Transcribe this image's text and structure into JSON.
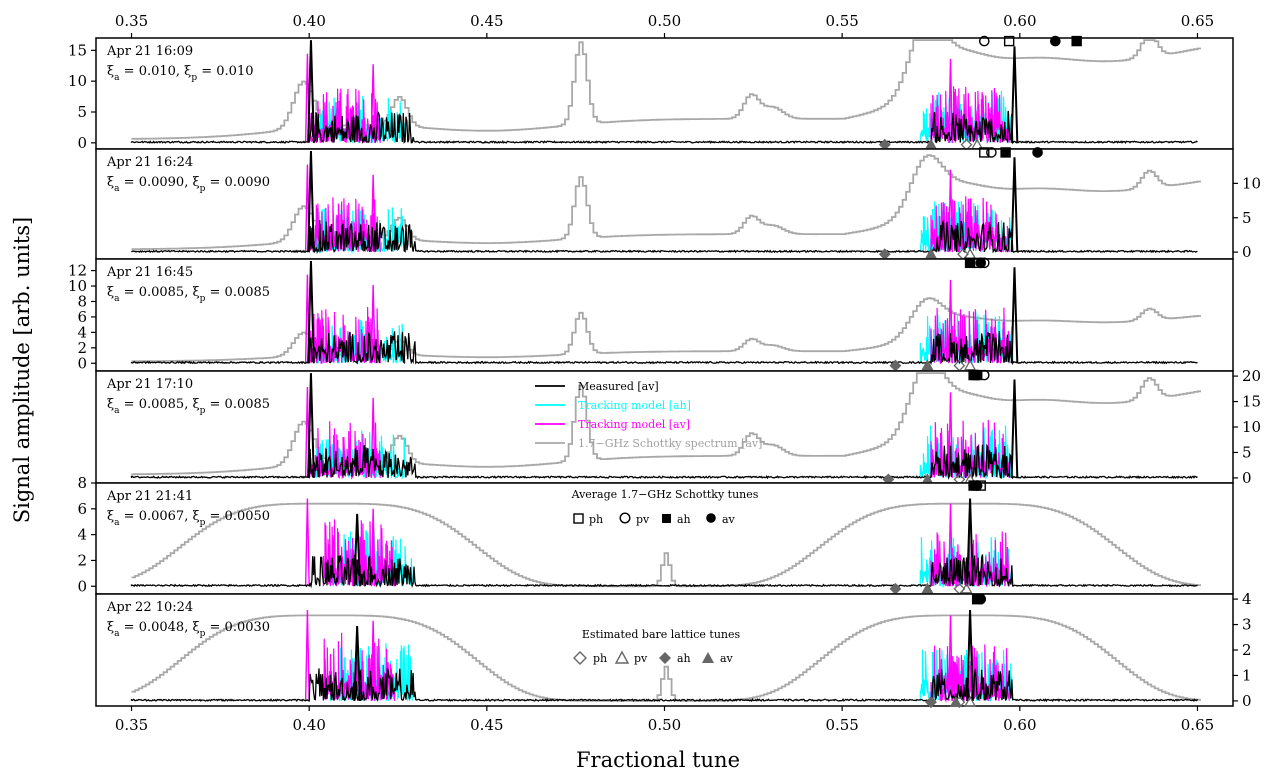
{
  "chart_data": {
    "type": "line",
    "xlabel": "Fractional tune",
    "ylabel": "Signal amplitude [arb. units]",
    "xlim": [
      0.34,
      0.66
    ],
    "x_ticks": [
      "0.35",
      "0.40",
      "0.45",
      "0.50",
      "0.55",
      "0.60",
      "0.65"
    ],
    "grid": false,
    "series_colors": {
      "measured": "#000000",
      "ah": "#00ffff",
      "av": "#ff00ff",
      "schottky": "#a8a8a8",
      "marker_dark": "#666666"
    },
    "legend": {
      "entries": [
        "Measured [av]",
        "Tracking model [ah]",
        "Tracking model [av]",
        "1.7−GHz Schottky spectrum [av]"
      ],
      "schottky_tunes_title": "Average 1.7−GHz Schottky tunes",
      "schottky_tunes_labels": [
        "ph",
        "pv",
        "ah",
        "av"
      ],
      "bare_tunes_title": "Estimated bare lattice tunes",
      "bare_tunes_labels": [
        "ph",
        "pv",
        "ah",
        "av"
      ]
    },
    "panels": [
      {
        "date": "Apr 21 16:09",
        "xi_a": "0.010",
        "xi_p": "0.010",
        "axis_side": "left",
        "ylim": [
          -1,
          17
        ],
        "yticks": [
          {
            "v": 0,
            "l": "0"
          },
          {
            "v": 5,
            "l": "5"
          },
          {
            "v": 10,
            "l": "10"
          },
          {
            "v": 15,
            "l": "15"
          }
        ],
        "schottky_tunes": {
          "ph": [
            0.597,
            16.5
          ],
          "pv": [
            0.59,
            16.5
          ],
          "ah": [
            0.616,
            16.5
          ],
          "av": [
            0.61,
            16.5
          ]
        },
        "bare_tunes": {
          "ph": [
            0.585,
            -0.3
          ],
          "pv": [
            0.588,
            -0.3
          ],
          "ah": [
            0.562,
            -0.3
          ],
          "av": [
            0.575,
            -0.3
          ]
        }
      },
      {
        "date": "Apr 21 16:24",
        "xi_a": "0.0090",
        "xi_p": "0.0090",
        "axis_side": "right",
        "ylim": [
          -1,
          15
        ],
        "yticks": [
          {
            "v": 0,
            "l": "0"
          },
          {
            "v": 5,
            "l": "5"
          },
          {
            "v": 10,
            "l": "10"
          }
        ],
        "schottky_tunes": {
          "ph": [
            0.59,
            14.5
          ],
          "pv": [
            0.592,
            14.5
          ],
          "ah": [
            0.596,
            14.5
          ],
          "av": [
            0.605,
            14.5
          ]
        },
        "bare_tunes": {
          "ph": [
            0.584,
            -0.3
          ],
          "pv": [
            0.586,
            -0.3
          ],
          "ah": [
            0.562,
            -0.3
          ],
          "av": [
            0.575,
            -0.3
          ]
        }
      },
      {
        "date": "Apr 21 16:45",
        "xi_a": "0.0085",
        "xi_p": "0.0085",
        "axis_side": "left",
        "ylim": [
          -1,
          13.5
        ],
        "yticks": [
          {
            "v": 0,
            "l": "0"
          },
          {
            "v": 2,
            "l": "2"
          },
          {
            "v": 4,
            "l": "4"
          },
          {
            "v": 6,
            "l": "6"
          },
          {
            "v": 8,
            "l": "8"
          },
          {
            "v": 10,
            "l": "10"
          },
          {
            "v": 12,
            "l": "12"
          }
        ],
        "schottky_tunes": {
          "ph": [
            0.588,
            13
          ],
          "pv": [
            0.59,
            13
          ],
          "ah": [
            0.586,
            13
          ],
          "av": [
            0.589,
            13
          ]
        },
        "bare_tunes": {
          "ph": [
            0.583,
            -0.3
          ],
          "pv": [
            0.586,
            -0.3
          ],
          "ah": [
            0.565,
            -0.3
          ],
          "av": [
            0.574,
            -0.3
          ]
        }
      },
      {
        "date": "Apr 21 17:10",
        "xi_a": "0.0085",
        "xi_p": "0.0085",
        "axis_side": "right",
        "ylim": [
          -1,
          21
        ],
        "yticks": [
          {
            "v": 0,
            "l": "0"
          },
          {
            "v": 5,
            "l": "5"
          },
          {
            "v": 10,
            "l": "10"
          },
          {
            "v": 15,
            "l": "15"
          },
          {
            "v": 20,
            "l": "20"
          }
        ],
        "schottky_tunes": {
          "ph": [
            0.588,
            20.2
          ],
          "pv": [
            0.59,
            20.2
          ],
          "ah": [
            0.587,
            20.2
          ],
          "av": [
            0.588,
            20.2
          ]
        },
        "bare_tunes": {
          "ph": [
            0.583,
            -0.3
          ],
          "pv": [
            0.586,
            -0.3
          ],
          "ah": [
            0.563,
            -0.3
          ],
          "av": [
            0.574,
            -0.3
          ]
        }
      },
      {
        "date": "Apr 21 21:41",
        "xi_a": "0.0067",
        "xi_p": "0.0050",
        "axis_side": "left",
        "ylim": [
          -0.6,
          8
        ],
        "yticks": [
          {
            "v": 0,
            "l": "0"
          },
          {
            "v": 2,
            "l": "2"
          },
          {
            "v": 4,
            "l": "4"
          },
          {
            "v": 6,
            "l": "6"
          },
          {
            "v": 8,
            "l": "8"
          }
        ],
        "schottky_tunes": {
          "ph": [
            0.589,
            7.8
          ],
          "pv": [
            0.587,
            7.8
          ],
          "ah": [
            0.587,
            7.8
          ],
          "av": [
            0.588,
            7.8
          ]
        },
        "bare_tunes": {
          "ph": [
            0.583,
            -0.2
          ],
          "pv": [
            0.585,
            -0.2
          ],
          "ah": [
            0.565,
            -0.2
          ],
          "av": [
            0.574,
            -0.2
          ]
        }
      },
      {
        "date": "Apr 22 10:24",
        "xi_a": "0.0048",
        "xi_p": "0.0030",
        "axis_side": "right",
        "ylim": [
          -0.2,
          4.2
        ],
        "yticks": [
          {
            "v": 0,
            "l": "0"
          },
          {
            "v": 1,
            "l": "1"
          },
          {
            "v": 2,
            "l": "2"
          },
          {
            "v": 3,
            "l": "3"
          },
          {
            "v": 4,
            "l": "4"
          }
        ],
        "schottky_tunes": {
          "ph": [
            0.588,
            4.0
          ],
          "pv": [
            0.589,
            4.0
          ],
          "ah": [
            0.588,
            4.0
          ],
          "av": [
            0.589,
            4.0
          ]
        },
        "bare_tunes": {
          "ph": [
            0.583,
            -0.05
          ],
          "pv": [
            0.586,
            -0.05
          ],
          "ah": [
            0.575,
            -0.05
          ],
          "av": [
            0.582,
            -0.05
          ]
        }
      }
    ],
    "series_note": "Measured [av]: sharp peaks near 0.40 and 0.60 plus cluster 0.40-0.43 and 0.575-0.598; Tracking model [ah]/[av]: clusters at those ranges; Schottky [av]: grey stepped envelope."
  }
}
